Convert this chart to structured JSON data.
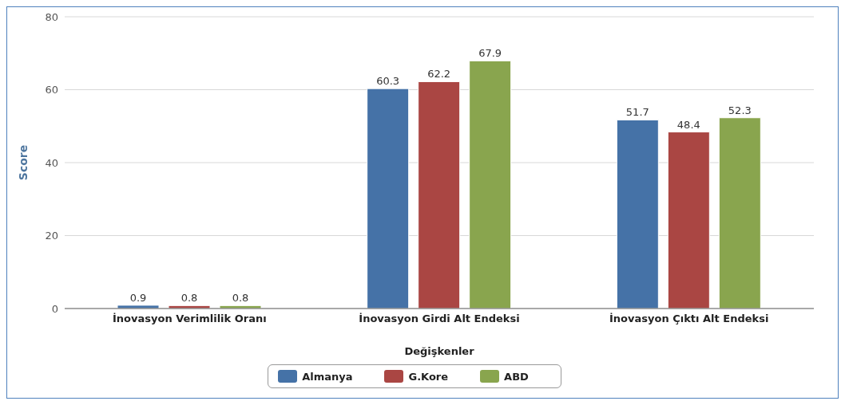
{
  "chart_data": {
    "type": "bar",
    "xlabel": "Değişkenler",
    "ylabel": "Score",
    "categories": [
      "İnovasyon Verimlilik Oranı",
      "İnovasyon Girdi Alt Endeksi",
      "İnovasyon Çıktı Alt Endeksi"
    ],
    "series": [
      {
        "name": "Almanya",
        "color": "#4572a7",
        "values": [
          0.9,
          60.3,
          51.7
        ]
      },
      {
        "name": "G.Kore",
        "color": "#aa4643",
        "values": [
          0.8,
          62.2,
          48.4
        ]
      },
      {
        "name": "ABD",
        "color": "#89a54e",
        "values": [
          0.8,
          67.9,
          52.3
        ]
      }
    ],
    "ylim": [
      0,
      80
    ],
    "yticks": [
      0,
      20,
      40,
      60,
      80
    ],
    "grid": "y",
    "legend": "bottom",
    "data_labels": true
  }
}
